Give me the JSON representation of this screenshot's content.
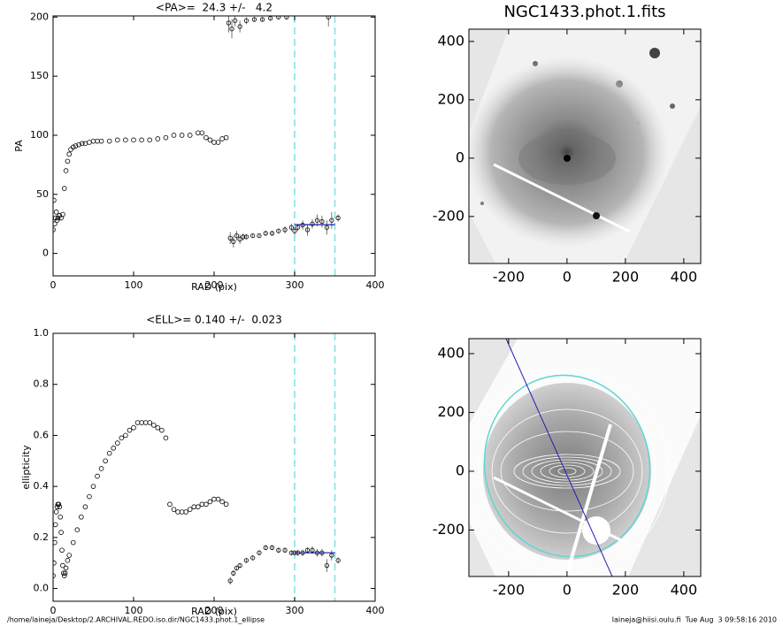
{
  "chart_data": [
    {
      "type": "scatter",
      "title": "<PA>=  24.3 +/-   4.2",
      "xlabel": "RAD (pix)",
      "ylabel": "PA",
      "xlim": [
        0,
        400
      ],
      "ylim": [
        -19,
        201
      ],
      "xticks": [
        0,
        100,
        200,
        300,
        400
      ],
      "yticks": [
        0,
        50,
        100,
        150,
        200
      ],
      "points": {
        "x": [
          0,
          1,
          2,
          3,
          4,
          5,
          6,
          8,
          10,
          12,
          14,
          16,
          18,
          20,
          22,
          25,
          28,
          32,
          36,
          40,
          45,
          50,
          55,
          60,
          70,
          80,
          90,
          100,
          110,
          120,
          130,
          140,
          150,
          160,
          170,
          180,
          185,
          190,
          195,
          200,
          205,
          210,
          215
        ],
        "y": [
          20,
          45,
          25,
          30,
          35,
          28,
          30,
          32,
          30,
          33,
          55,
          70,
          78,
          84,
          88,
          90,
          91,
          92,
          93,
          93,
          94,
          95,
          95,
          95,
          95,
          96,
          96,
          96,
          96,
          96,
          97,
          98,
          100,
          100,
          100,
          102,
          102,
          98,
          96,
          94,
          94,
          97,
          98
        ]
      },
      "error_points": {
        "x": [
          220,
          224,
          228,
          232,
          236,
          240,
          248,
          256,
          264,
          272,
          280,
          288,
          296,
          300,
          304,
          310,
          316,
          322,
          328,
          334,
          340,
          346,
          354,
          218,
          222,
          226,
          232,
          240,
          250,
          260,
          270,
          280,
          290,
          342
        ],
        "y": [
          13,
          10,
          15,
          12,
          14,
          14,
          15,
          15,
          17,
          17,
          19,
          20,
          22,
          19,
          22,
          24,
          20,
          25,
          28,
          27,
          22,
          28,
          30,
          195,
          190,
          197,
          192,
          197,
          198,
          198,
          199,
          200,
          200,
          200
        ],
        "yerr": [
          5,
          5,
          4,
          4,
          3,
          2,
          2,
          2,
          2,
          2,
          2,
          3,
          3,
          3,
          3,
          4,
          5,
          4,
          5,
          5,
          6,
          7,
          3,
          8,
          8,
          5,
          5,
          3,
          2,
          2,
          2,
          2,
          2,
          8
        ]
      },
      "vlines": [
        300,
        350
      ],
      "vline_color": "#7fe0e0",
      "mean": {
        "x": [
          300,
          350
        ],
        "y": 24.3,
        "color": "#1a1aa8"
      }
    },
    {
      "type": "scatter",
      "title": "<ELL>= 0.140 +/-  0.023",
      "xlabel": "RAD (pix)",
      "ylabel": "ellipticity",
      "xlim": [
        0,
        400
      ],
      "ylim": [
        -0.05,
        1.0
      ],
      "xticks": [
        0,
        100,
        200,
        300,
        400
      ],
      "yticks": [
        {
          "value": 0,
          "label": "0.0"
        },
        0.2,
        0.4,
        0.6,
        0.8,
        {
          "value": 1,
          "label": "1.0"
        }
      ],
      "points": {
        "x": [
          0,
          1,
          2,
          3,
          4,
          5,
          6,
          7,
          8,
          9,
          10,
          11,
          12,
          13,
          14,
          15,
          16,
          18,
          20,
          25,
          30,
          35,
          40,
          45,
          50,
          55,
          60,
          65,
          70,
          75,
          80,
          85,
          90,
          95,
          100,
          105,
          110,
          115,
          120,
          125,
          130,
          135,
          140,
          145,
          150,
          155,
          160,
          165,
          170,
          175,
          180,
          185,
          190,
          195,
          200,
          205,
          210,
          215
        ],
        "y": [
          0.05,
          0.1,
          0.18,
          0.25,
          0.3,
          0.32,
          0.33,
          0.33,
          0.32,
          0.28,
          0.22,
          0.15,
          0.09,
          0.06,
          0.05,
          0.06,
          0.08,
          0.11,
          0.13,
          0.18,
          0.23,
          0.28,
          0.32,
          0.36,
          0.4,
          0.44,
          0.47,
          0.5,
          0.53,
          0.55,
          0.57,
          0.59,
          0.6,
          0.62,
          0.63,
          0.65,
          0.65,
          0.65,
          0.65,
          0.64,
          0.63,
          0.62,
          0.59,
          0.33,
          0.31,
          0.3,
          0.3,
          0.3,
          0.31,
          0.32,
          0.32,
          0.33,
          0.33,
          0.34,
          0.35,
          0.35,
          0.34,
          0.33
        ]
      },
      "error_points": {
        "x": [
          220,
          224,
          228,
          232,
          240,
          248,
          256,
          264,
          272,
          280,
          288,
          296,
          300,
          304,
          310,
          316,
          322,
          328,
          334,
          340,
          346,
          354
        ],
        "y": [
          0.03,
          0.06,
          0.08,
          0.09,
          0.11,
          0.12,
          0.14,
          0.16,
          0.16,
          0.15,
          0.15,
          0.14,
          0.14,
          0.14,
          0.14,
          0.15,
          0.15,
          0.14,
          0.14,
          0.09,
          0.13,
          0.11
        ],
        "yerr": [
          0.015,
          0.012,
          0.01,
          0.01,
          0.01,
          0.01,
          0.01,
          0.01,
          0.01,
          0.01,
          0.01,
          0.01,
          0.01,
          0.012,
          0.012,
          0.012,
          0.015,
          0.015,
          0.015,
          0.025,
          0.02,
          0.012
        ]
      },
      "vlines": [
        300,
        350
      ],
      "vline_color": "#7fe0e0",
      "mean": {
        "x": [
          300,
          350
        ],
        "y": 0.14,
        "color": "#1a1aa8"
      }
    },
    {
      "type": "image",
      "title": "NGC1433.phot.1.fits",
      "xlim": [
        -336,
        458
      ],
      "ylim": [
        -361,
        442
      ],
      "xticks": [
        -200,
        0,
        200,
        400
      ],
      "yticks": [
        -200,
        0,
        200,
        400
      ]
    },
    {
      "type": "image",
      "xlim": [
        -336,
        458
      ],
      "ylim": [
        -358,
        451
      ],
      "xticks": [
        -200,
        0,
        200,
        400
      ],
      "yticks": [
        -200,
        0,
        200,
        400
      ]
    }
  ],
  "footer": {
    "path": "/home/laineja/Desktop/2.ARCHIVAL.REDO.iso.dir/NGC1433.phot.1_ellipse",
    "stamp": "laineja@hiisi.oulu.fi  Tue Aug  3 09:58:16 2010"
  }
}
